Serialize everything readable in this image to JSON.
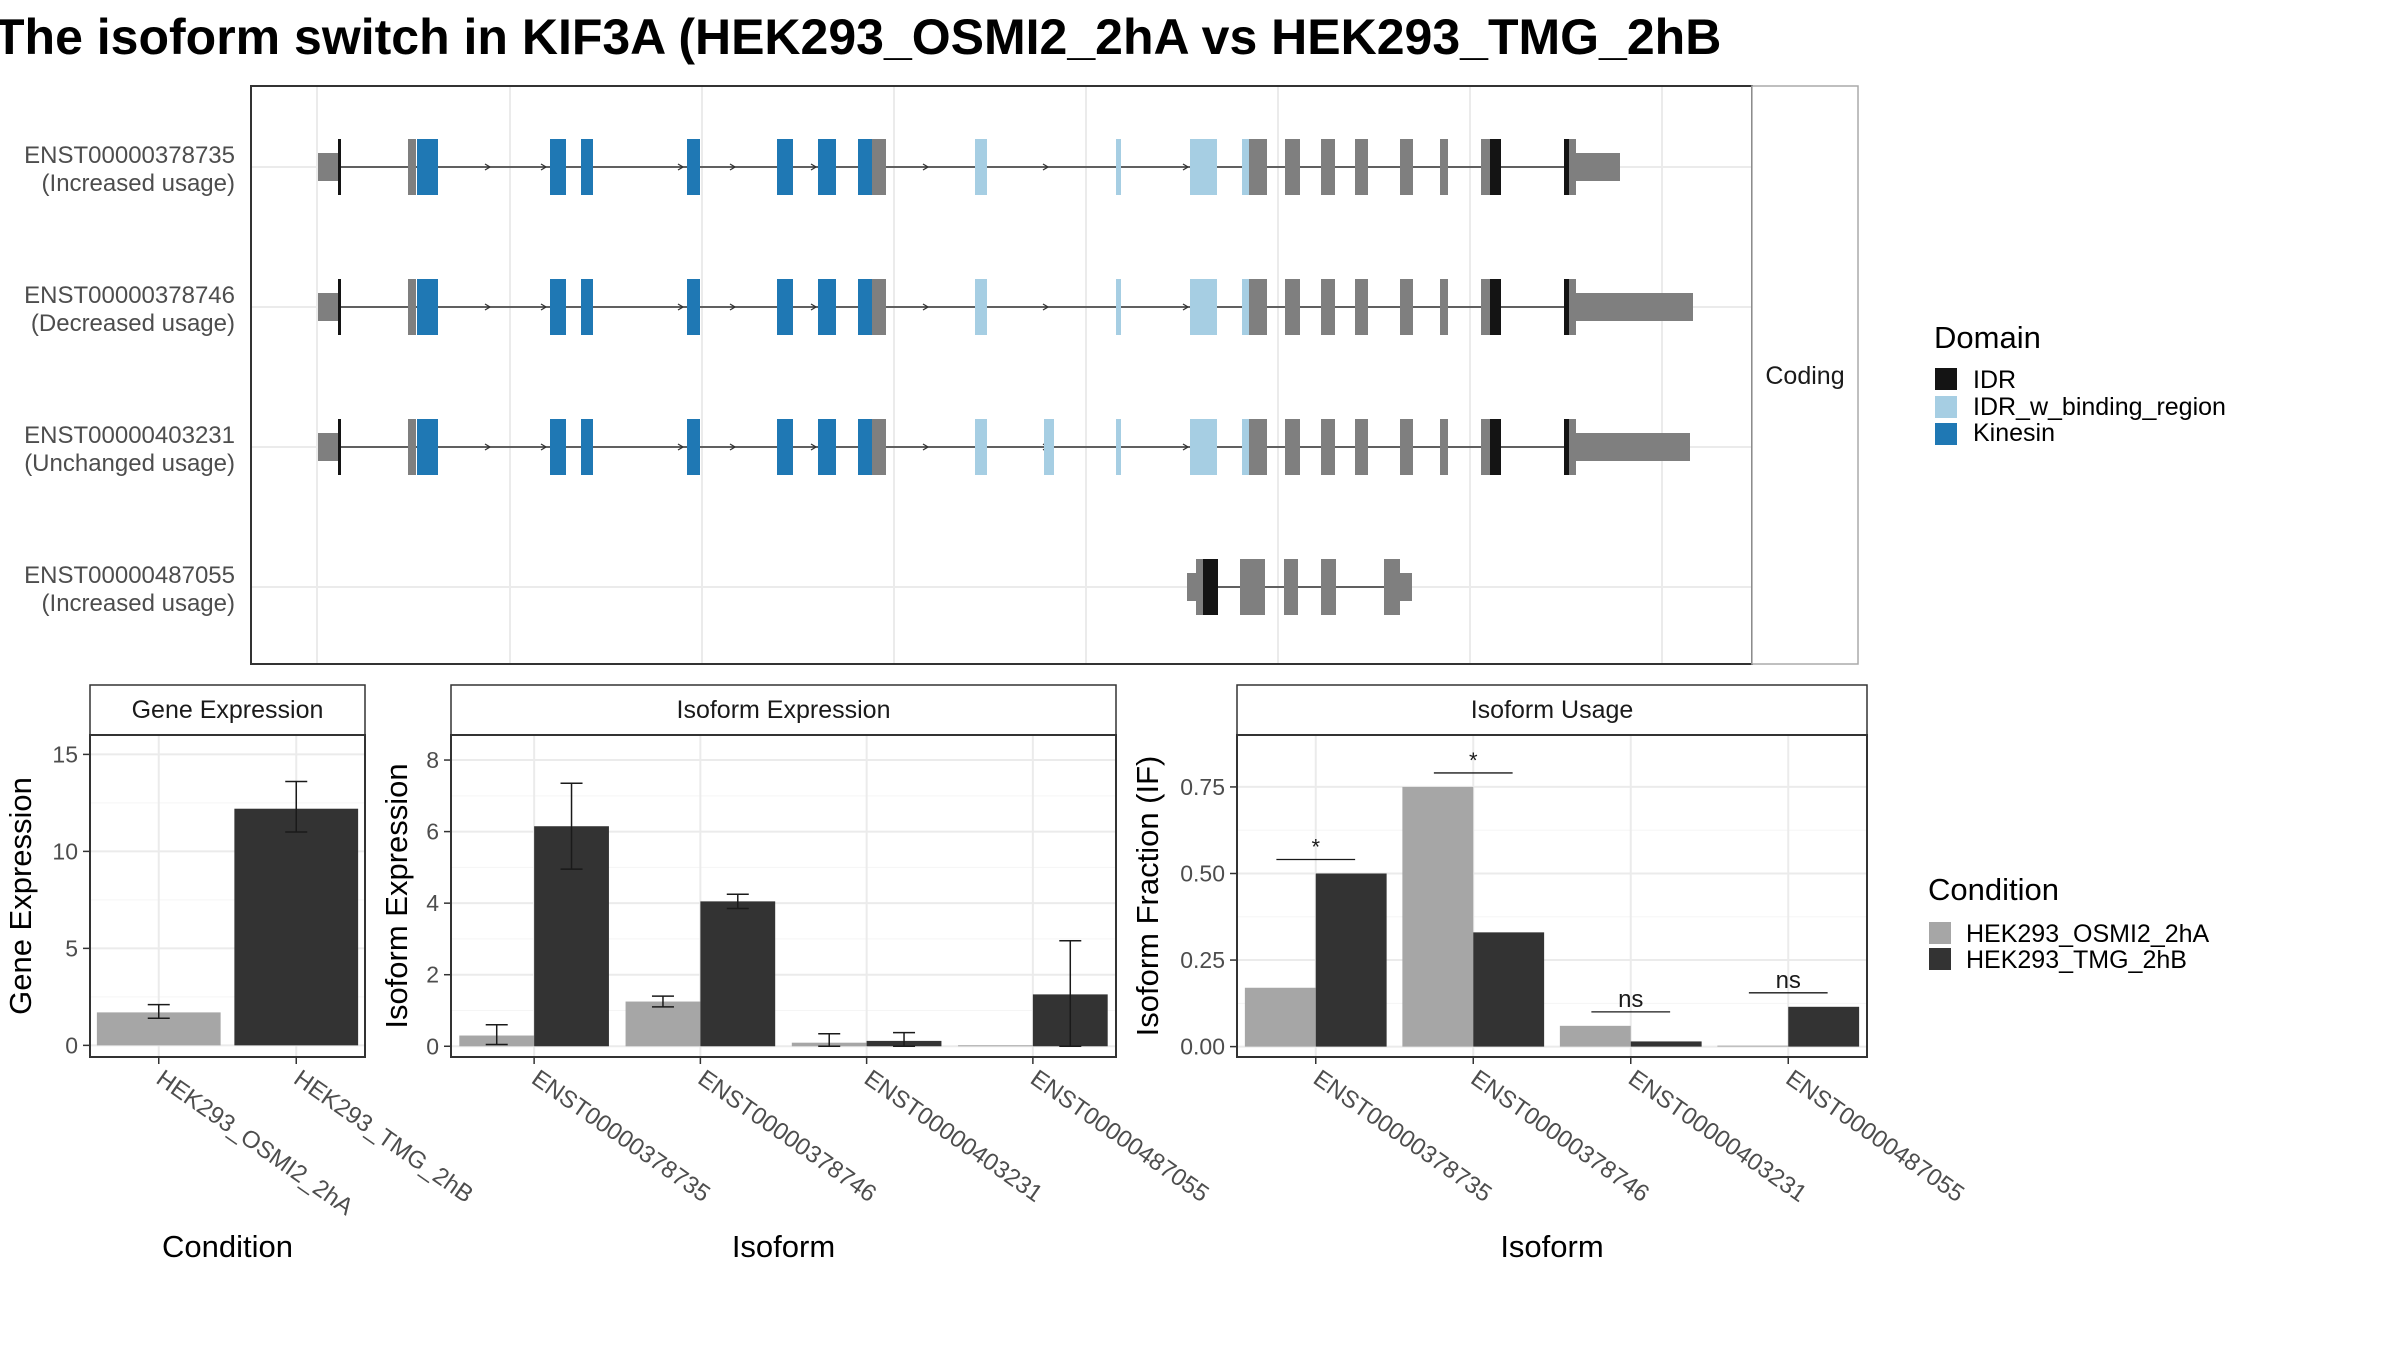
{
  "title": "The isoform switch in KIF3A (HEK293_OSMI2_2hA vs HEK293_TMG_2hB",
  "colors": {
    "cond1": "#a6a6a6",
    "cond2": "#333333",
    "utr": "#7f7f7f",
    "IDR": "#141414",
    "IDR_w_binding_region": "#a6cee3",
    "Kinesin": "#1f78b4"
  },
  "structure": {
    "facet_label": "Coding",
    "transcripts": [
      {
        "id": "ENST00000378735",
        "usage": "(Increased usage)",
        "row": 0
      },
      {
        "id": "ENST00000378746",
        "usage": "(Decreased usage)",
        "row": 1
      },
      {
        "id": "ENST00000403231",
        "usage": "(Unchanged usage)",
        "row": 2
      },
      {
        "id": "ENST00000487055",
        "usage": "(Increased usage)",
        "row": 3
      }
    ],
    "legend": {
      "title": "Domain",
      "items": [
        "IDR",
        "IDR_w_binding_region",
        "Kinesin"
      ]
    }
  },
  "condition_legend": {
    "title": "Condition",
    "items": [
      "HEK293_OSMI2_2hA",
      "HEK293_TMG_2hB"
    ]
  },
  "chart_data": [
    {
      "type": "bar",
      "title": "Gene Expression",
      "xlabel": "Condition",
      "ylabel": "Gene Expression",
      "categories": [
        "HEK293_OSMI2_2hA",
        "HEK293_TMG_2hB"
      ],
      "values": [
        1.7,
        12.2
      ],
      "error_low": [
        1.4,
        11.0
      ],
      "error_high": [
        2.1,
        13.6
      ],
      "yticks": [
        0,
        5,
        10,
        15
      ],
      "ylim": [
        -0.6,
        16
      ]
    },
    {
      "type": "bar",
      "title": "Isoform Expression",
      "xlabel": "Isoform",
      "ylabel": "Isoform Expression",
      "categories": [
        "ENST00000378735",
        "ENST00000378746",
        "ENST00000403231",
        "ENST00000487055"
      ],
      "series": [
        {
          "name": "HEK293_OSMI2_2hA",
          "values": [
            0.3,
            1.25,
            0.1,
            0.0
          ],
          "error_low": [
            0.05,
            1.1,
            0.0,
            0.0
          ],
          "error_high": [
            0.6,
            1.4,
            0.35,
            0.0
          ]
        },
        {
          "name": "HEK293_TMG_2hB",
          "values": [
            6.15,
            4.05,
            0.15,
            1.45
          ],
          "error_low": [
            4.95,
            3.85,
            0.0,
            0.0
          ],
          "error_high": [
            7.35,
            4.25,
            0.38,
            2.95
          ]
        }
      ],
      "yticks": [
        0,
        2,
        4,
        6,
        8
      ],
      "ylim": [
        -0.3,
        8.7
      ]
    },
    {
      "type": "bar",
      "title": "Isoform Usage",
      "xlabel": "Isoform",
      "ylabel": "Isoform Fraction (IF)",
      "categories": [
        "ENST00000378735",
        "ENST00000378746",
        "ENST00000403231",
        "ENST00000487055"
      ],
      "series": [
        {
          "name": "HEK293_OSMI2_2hA",
          "values": [
            0.17,
            0.75,
            0.06,
            0.0
          ]
        },
        {
          "name": "HEK293_TMG_2hB",
          "values": [
            0.5,
            0.33,
            0.015,
            0.115
          ]
        }
      ],
      "significance": [
        "*",
        "*",
        "ns",
        "ns"
      ],
      "yticks": [
        0.0,
        0.25,
        0.5,
        0.75
      ],
      "ytick_labels": [
        "0.00",
        "0.25",
        "0.50",
        "0.75"
      ],
      "ylim": [
        -0.03,
        0.9
      ]
    }
  ]
}
